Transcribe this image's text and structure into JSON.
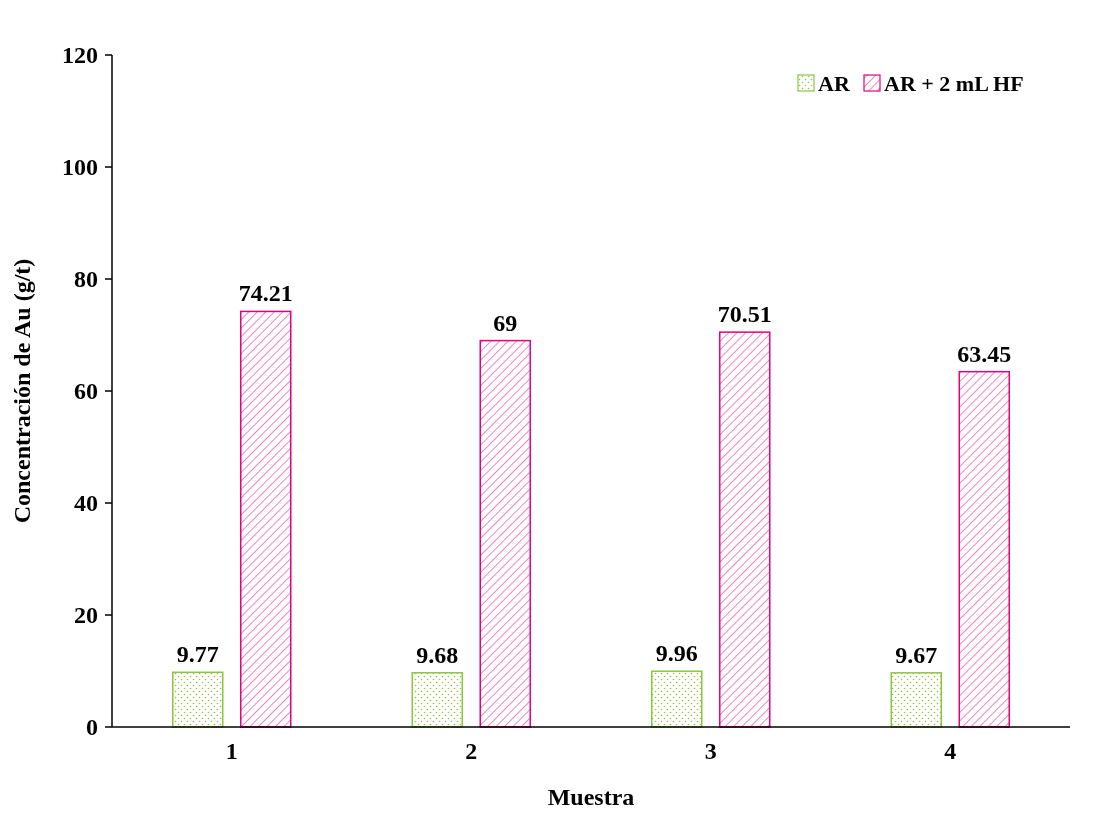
{
  "chart_data": {
    "type": "bar",
    "xlabel": "Muestra",
    "ylabel": "Concentración de Au (g/t)",
    "categories": [
      "1",
      "2",
      "3",
      "4"
    ],
    "series": [
      {
        "name": "AR",
        "color": "#8cc63f",
        "values": [
          9.77,
          9.68,
          9.96,
          9.67
        ]
      },
      {
        "name": "AR + 2 mL HF",
        "color": "#e6007e",
        "values": [
          74.21,
          69,
          70.51,
          63.45
        ]
      }
    ],
    "ylim": [
      0,
      120
    ],
    "yticks": [
      0,
      20,
      40,
      60,
      80,
      100,
      120
    ],
    "grid": false,
    "legend": "top right",
    "data_labels": true
  }
}
